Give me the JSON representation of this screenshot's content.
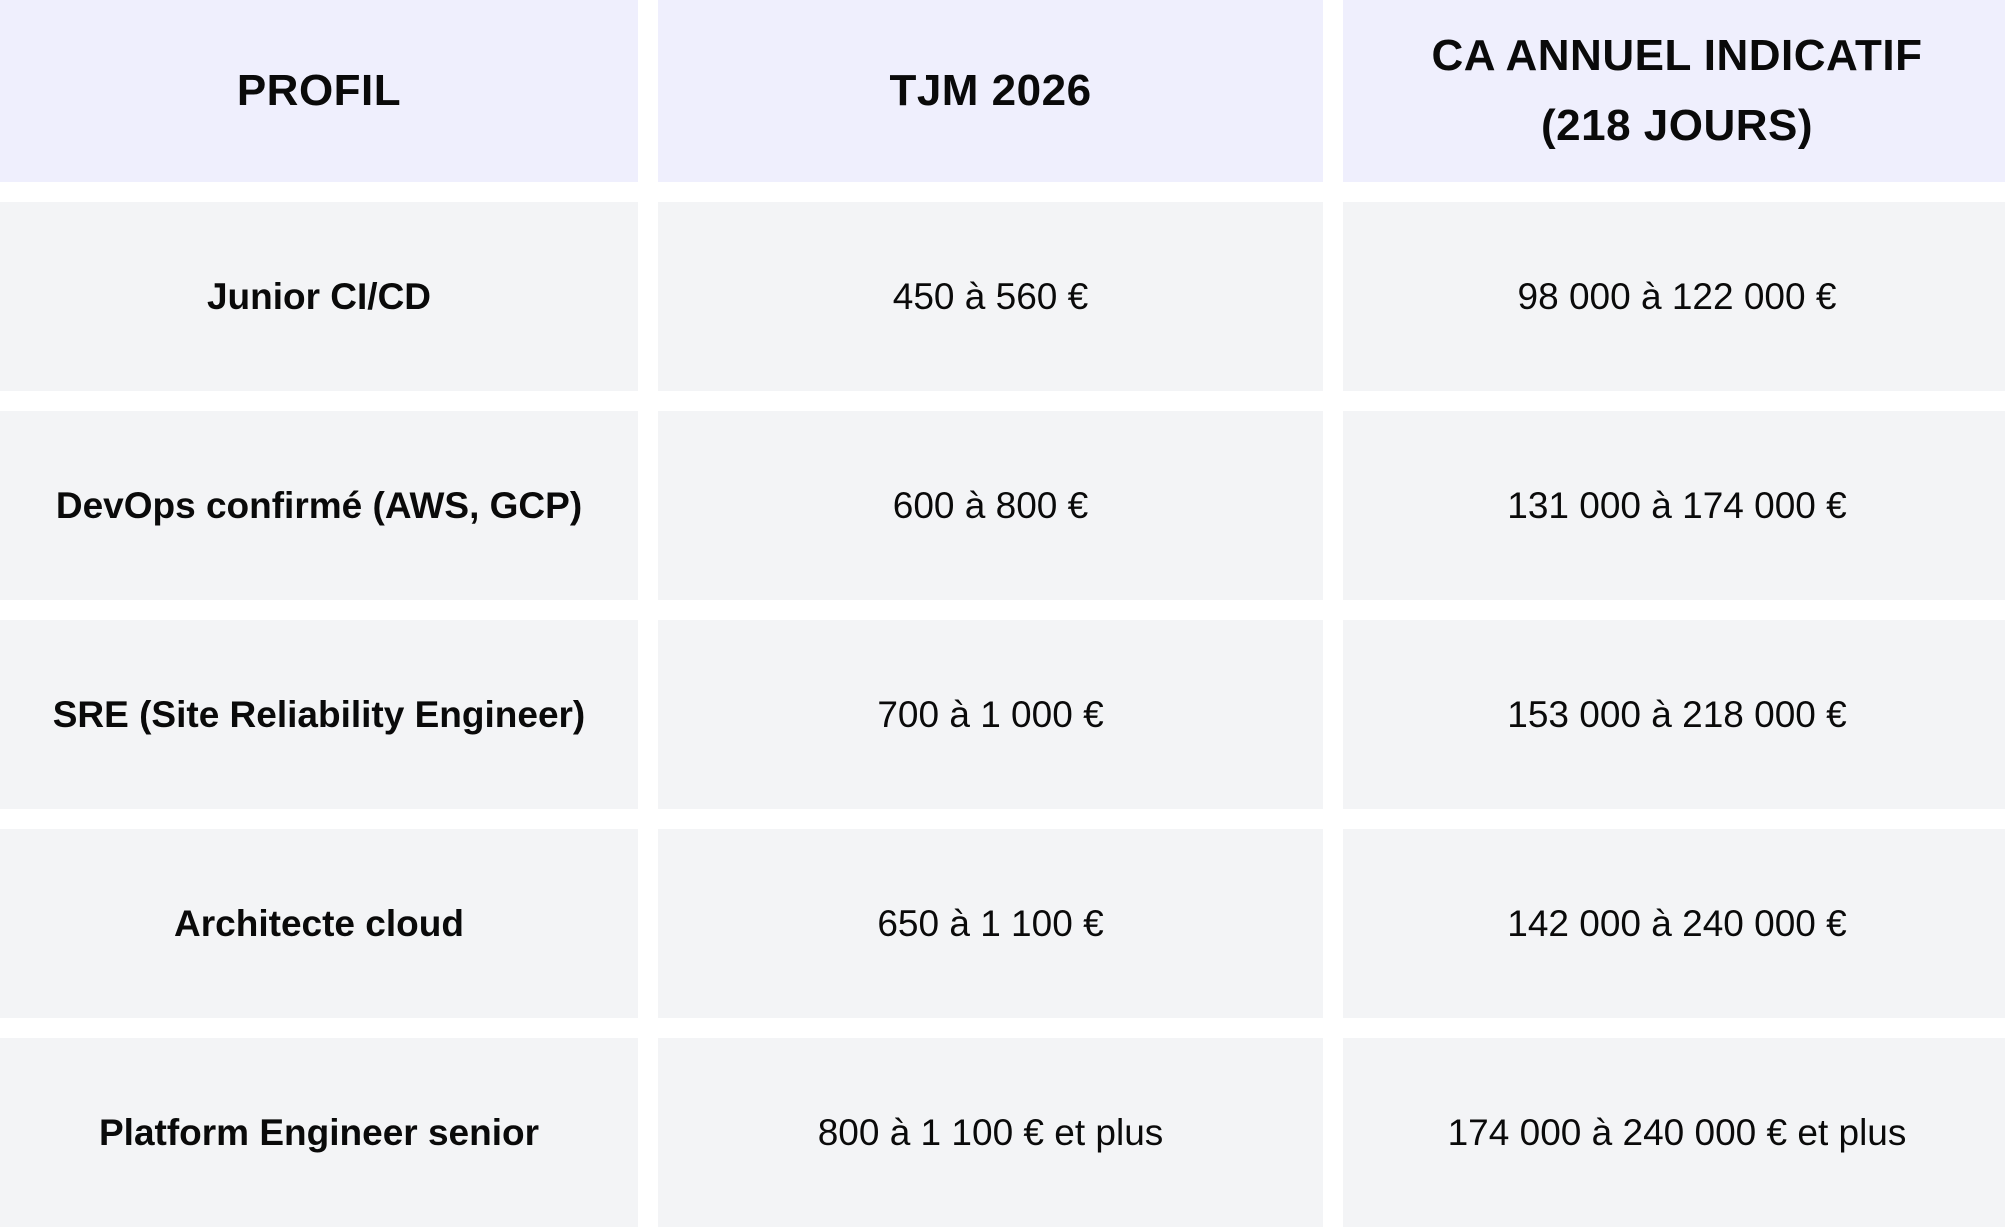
{
  "table": {
    "headers": [
      "PROFIL",
      "TJM 2026",
      "CA ANNUEL INDICATIF (218 JOURS)"
    ],
    "rows": [
      {
        "profil": "Junior CI/CD",
        "tjm": "450 à 560 €",
        "ca": "98 000 à 122 000 €"
      },
      {
        "profil": "DevOps confirmé (AWS, GCP)",
        "tjm": "600 à 800 €",
        "ca": "131 000 à 174 000 €"
      },
      {
        "profil": "SRE (Site Reliability Engineer)",
        "tjm": "700 à 1 000 €",
        "ca": "153 000 à 218 000 €"
      },
      {
        "profil": "Architecte cloud",
        "tjm": "650 à 1 100 €",
        "ca": "142 000 à 240 000 €"
      },
      {
        "profil": "Platform Engineer senior",
        "tjm": "800 à 1 100 € et plus",
        "ca": "174 000 à 240 000 € et plus"
      }
    ]
  },
  "colors": {
    "header_bg": "#efeffd",
    "row_bg": "#f3f4f6",
    "text": "#0a0a0a"
  }
}
